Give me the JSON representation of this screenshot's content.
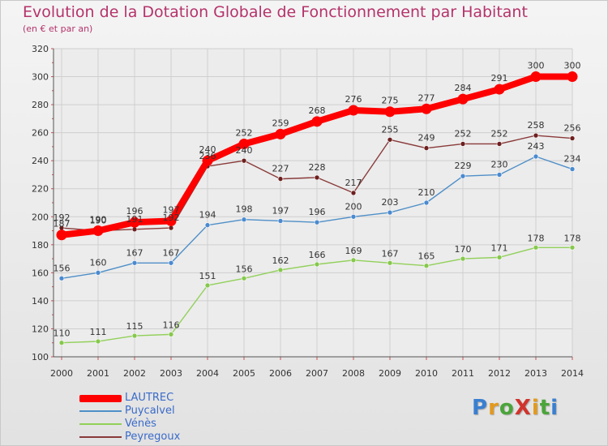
{
  "title": "Evolution de la Dotation Globale de Fonctionnement par Habitant",
  "subtitle": "(en € et par an)",
  "logo": {
    "text": "ProXiti",
    "colors": [
      "#3a7fd0",
      "#e39a1c",
      "#4aa53a",
      "#d0342c",
      "#e39a1c",
      "#4aa53a",
      "#3a7fd0"
    ]
  },
  "chart_data": {
    "type": "line",
    "x": [
      "2000",
      "2001",
      "2002",
      "2003",
      "2004",
      "2005",
      "2006",
      "2007",
      "2008",
      "2009",
      "2010",
      "2011",
      "2012",
      "2013",
      "2014"
    ],
    "ylim": [
      100,
      320
    ],
    "yticks": [
      100,
      120,
      140,
      160,
      180,
      200,
      220,
      240,
      260,
      280,
      300,
      320
    ],
    "grid": true,
    "legend": "bottom-left",
    "series": [
      {
        "name": "Vénès",
        "color": "#92d05a",
        "dot": "#86c84c",
        "values": [
          110,
          111,
          115,
          116,
          151,
          156,
          162,
          166,
          169,
          167,
          165,
          170,
          171,
          178,
          178
        ]
      },
      {
        "name": "Puycalvel",
        "color": "#4f8fc8",
        "dot": "#4a8ad0",
        "values": [
          156,
          160,
          167,
          167,
          194,
          198,
          197,
          196,
          200,
          203,
          210,
          229,
          230,
          243,
          234
        ]
      },
      {
        "name": "Peyregoux",
        "color": "#8a3a3a",
        "dot": "#6e1f1f",
        "values": [
          192,
          190,
          191,
          192,
          236,
          240,
          227,
          228,
          217,
          255,
          249,
          252,
          252,
          258,
          256
        ]
      },
      {
        "name": "LAUTREC",
        "color": "#ff0000",
        "dot": "#ff0000",
        "values": [
          187,
          190,
          196,
          197,
          240,
          252,
          259,
          268,
          276,
          275,
          277,
          284,
          291,
          300,
          300
        ]
      }
    ],
    "labels": [
      {
        "series": "Vénès",
        "texts": [
          "110",
          "111",
          "115",
          "116",
          "151",
          "156",
          "162",
          "166",
          "169",
          "167",
          "165",
          "170",
          "171",
          "178",
          "178"
        ]
      },
      {
        "series": "Puycalvel",
        "texts": [
          "156",
          "160",
          "167",
          "167",
          "194",
          "198",
          "197",
          "196",
          "200",
          "203",
          "210",
          "229",
          "230",
          "243",
          "234"
        ]
      },
      {
        "series": "Peyregoux",
        "texts": [
          "192",
          "190",
          "191",
          "192",
          "236",
          "240",
          "227",
          "228",
          "217",
          "255",
          "249",
          "252",
          "252",
          "258",
          "256"
        ]
      },
      {
        "series": "LAUTREC",
        "texts": [
          "187",
          "190",
          "196",
          "197",
          "240",
          "252",
          "259",
          "268",
          "276",
          "275",
          "277",
          "284",
          "291",
          "300",
          "300"
        ]
      }
    ]
  },
  "legend": {
    "items": [
      {
        "label": "LAUTREC",
        "color": "#ff0000"
      },
      {
        "label": "Puycalvel",
        "color": "#4f8fc8"
      },
      {
        "label": "Vénès",
        "color": "#92d05a"
      },
      {
        "label": "Peyregoux",
        "color": "#8a3a3a"
      }
    ]
  }
}
